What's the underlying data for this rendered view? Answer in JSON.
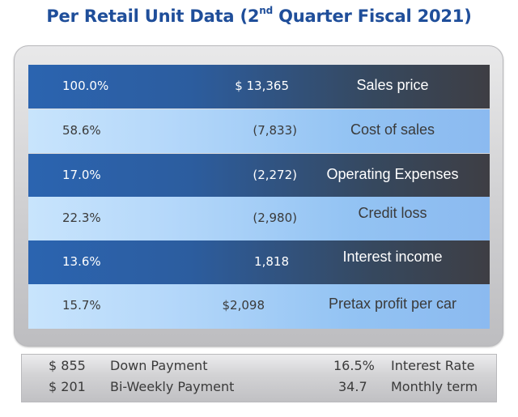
{
  "title": {
    "prefix": "Per Retail Unit Data (2",
    "superscript": "nd",
    "suffix": " Quarter Fiscal 2021)"
  },
  "rows": [
    {
      "pct": "100.0%",
      "amount": "$ 13,365",
      "label": "Sales price",
      "style": "dark"
    },
    {
      "pct": "58.6%",
      "amount": "(7,833)",
      "label": "Cost of sales",
      "style": "light"
    },
    {
      "pct": "17.0%",
      "amount": "(2,272)",
      "label": "Operating Expenses",
      "style": "dark"
    },
    {
      "pct": "22.3%",
      "amount": "(2,980)",
      "label": "Credit loss",
      "style": "light"
    },
    {
      "pct": "13.6%",
      "amount": "1,818",
      "label": "Interest income",
      "style": "dark"
    },
    {
      "pct": "15.7%",
      "amount": "$2,098",
      "label": "Pretax profit per car",
      "style": "light"
    }
  ],
  "bottom": [
    {
      "value_left": "$ 855",
      "label_left": "Down Payment",
      "value_right": "16.5%",
      "label_right": "Interest Rate"
    },
    {
      "value_left": "$ 201",
      "label_left": "Bi-Weekly Payment",
      "value_right": "34.7",
      "label_right": "Monthly term"
    }
  ],
  "colors": {
    "title": "#1f4e9a",
    "dark_row_start": "#2b64b0",
    "dark_row_end": "#3e3e44",
    "light_row_start": "#c8e4fc",
    "light_row_end": "#8bbaf0"
  }
}
